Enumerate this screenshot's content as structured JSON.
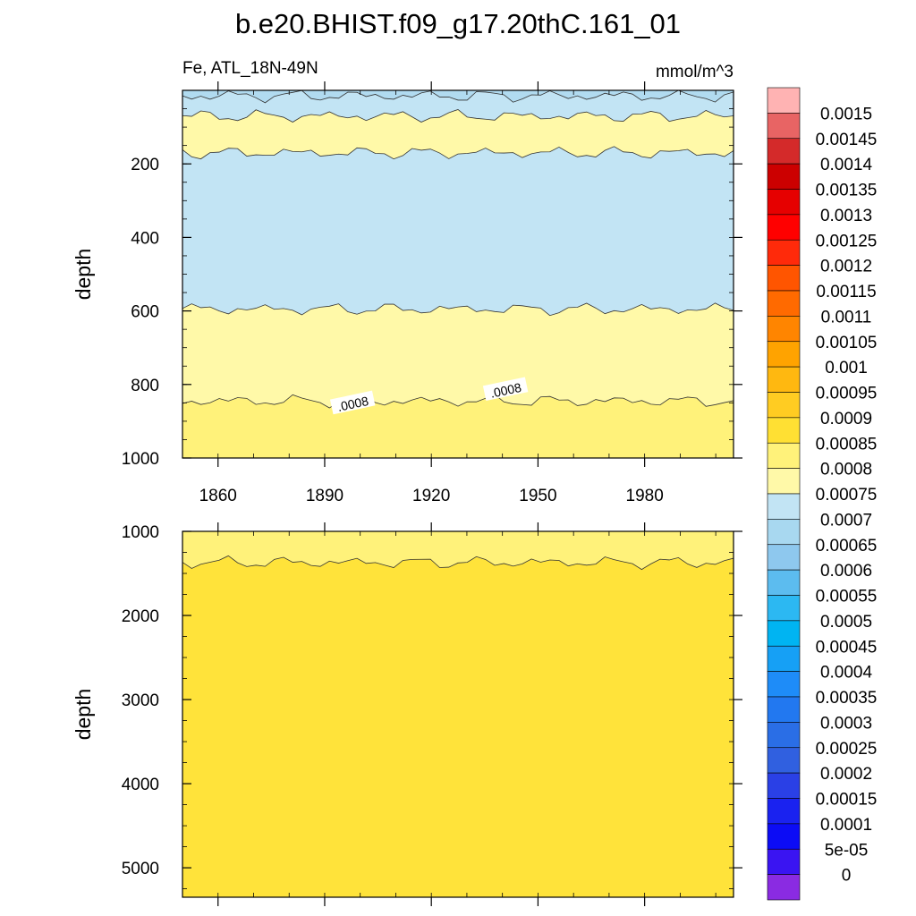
{
  "chart_data": {
    "type": "heatmap",
    "title": "b.e20.BHIST.f09_g17.20thC.161_01",
    "left_label": "Fe, ATL_18N-49N",
    "units": "mmol/m^3",
    "ylabel": "depth",
    "x_ticks": [
      "1860",
      "1890",
      "1920",
      "1950",
      "1980"
    ],
    "x_tick_values": [
      1860,
      1890,
      1920,
      1950,
      1980
    ],
    "xlim": [
      1850,
      2005
    ],
    "upper_panel": {
      "ylim": [
        0,
        1000
      ],
      "y_ticks": [
        "200",
        "400",
        "600",
        "800",
        "1000"
      ],
      "y_tick_values": [
        200,
        400,
        600,
        800,
        1000
      ],
      "layers": [
        {
          "range": "0.00065-0.0007",
          "top": 0,
          "bottom": 15,
          "color": "#b1dbf0"
        },
        {
          "range": "0.0007-0.00075",
          "top": 15,
          "bottom": 70,
          "color": "#c2e4f4"
        },
        {
          "range": "0.00075-0.0008",
          "top": 70,
          "bottom": 170,
          "color": "#fff9a8"
        },
        {
          "range": "0.0007-0.00075",
          "top": 170,
          "bottom": 595,
          "color": "#c2e4f4"
        },
        {
          "range": "0.00075-0.0008",
          "top": 595,
          "bottom": 845,
          "color": "#fff9a8"
        },
        {
          "range": "0.0008-0.00085",
          "top": 845,
          "bottom": 1000,
          "color": "#fff27a"
        }
      ],
      "contour_labels": [
        {
          "text": ".0008",
          "year": 1898,
          "depth": 855
        },
        {
          "text": ".0008",
          "year": 1941,
          "depth": 818
        }
      ]
    },
    "lower_panel": {
      "ylim": [
        1000,
        5350
      ],
      "y_ticks": [
        "1000",
        "2000",
        "3000",
        "4000",
        "5000"
      ],
      "y_tick_values": [
        1000,
        2000,
        3000,
        4000,
        5000
      ],
      "layers": [
        {
          "range": "0.0008-0.00085",
          "top": 1000,
          "bottom": 1370,
          "color": "#fff27a"
        },
        {
          "range": "0.00085-0.0009",
          "top": 1370,
          "bottom": 5350,
          "color": "#ffe33a"
        }
      ]
    },
    "colorbar": {
      "labels": [
        "0.0015",
        "0.00145",
        "0.0014",
        "0.00135",
        "0.0013",
        "0.00125",
        "0.0012",
        "0.00115",
        "0.0011",
        "0.00105",
        "0.001",
        "0.00095",
        "0.0009",
        "0.00085",
        "0.0008",
        "0.00075",
        "0.0007",
        "0.00065",
        "0.0006",
        "0.00055",
        "0.0005",
        "0.00045",
        "0.0004",
        "0.00035",
        "0.0003",
        "0.00025",
        "0.0002",
        "0.00015",
        "0.0001",
        "5e-05",
        "0"
      ],
      "colors": [
        "#ffb3b3",
        "#e86464",
        "#d42a2a",
        "#cc0000",
        "#e60000",
        "#ff0000",
        "#ff2a0a",
        "#ff5500",
        "#ff6a00",
        "#ff8500",
        "#ffa300",
        "#ffb810",
        "#ffcc22",
        "#ffe033",
        "#fff27a",
        "#fff9a8",
        "#c2e4f4",
        "#a8d8f0",
        "#8ec8ee",
        "#5cbcef",
        "#2cb8f2",
        "#00b4f2",
        "#16a0f5",
        "#1e8cf8",
        "#2278f0",
        "#2a6ee6",
        "#3060e0",
        "#2a40e6",
        "#1a22f0",
        "#0c0cf5",
        "#3a14f2",
        "#8a2be2"
      ]
    }
  }
}
